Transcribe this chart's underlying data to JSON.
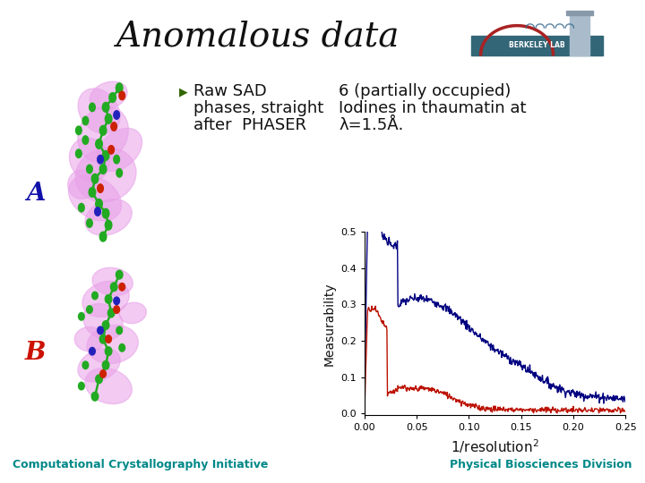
{
  "title": "Anomalous data",
  "title_fontsize": 28,
  "title_color": "#111111",
  "bg_color": "#ffffff",
  "header_bar_color": "#008888",
  "footer_bar_color": "#008888",
  "label_A_color": "#1111aa",
  "label_B_color": "#cc1100",
  "label_A": "A",
  "label_B": "B",
  "text_raw_sad_line1": "Raw SAD",
  "text_raw_sad_line2": "phases, straight",
  "text_raw_sad_line3": "after  PHASER",
  "text_6_line1": "6 (partially occupied)",
  "text_6_line2": "Iodines in thaumatin at",
  "text_6_line3": "λ=1.5Å.",
  "plot_ylabel": "Measurability",
  "plot_xlim": [
    0,
    0.25
  ],
  "plot_ylim": [
    -0.005,
    0.5
  ],
  "plot_yticks": [
    0,
    0.1,
    0.2,
    0.3,
    0.4,
    0.5
  ],
  "plot_xticks": [
    0,
    0.05,
    0.1,
    0.15,
    0.2,
    0.25
  ],
  "blue_line_color": "#000080",
  "red_line_color": "#bb1100",
  "footer_left": "Computational Crystallography Initiative",
  "footer_right": "Physical Biosciences Division",
  "footer_color": "#008888",
  "footer_fontsize": 9,
  "bullet_color": "#336600",
  "pink_density": "#e8a0e8",
  "pink_density2": "#d070d0",
  "green_atom": "#22aa22",
  "red_atom": "#cc2200",
  "blue_atom": "#2222bb"
}
